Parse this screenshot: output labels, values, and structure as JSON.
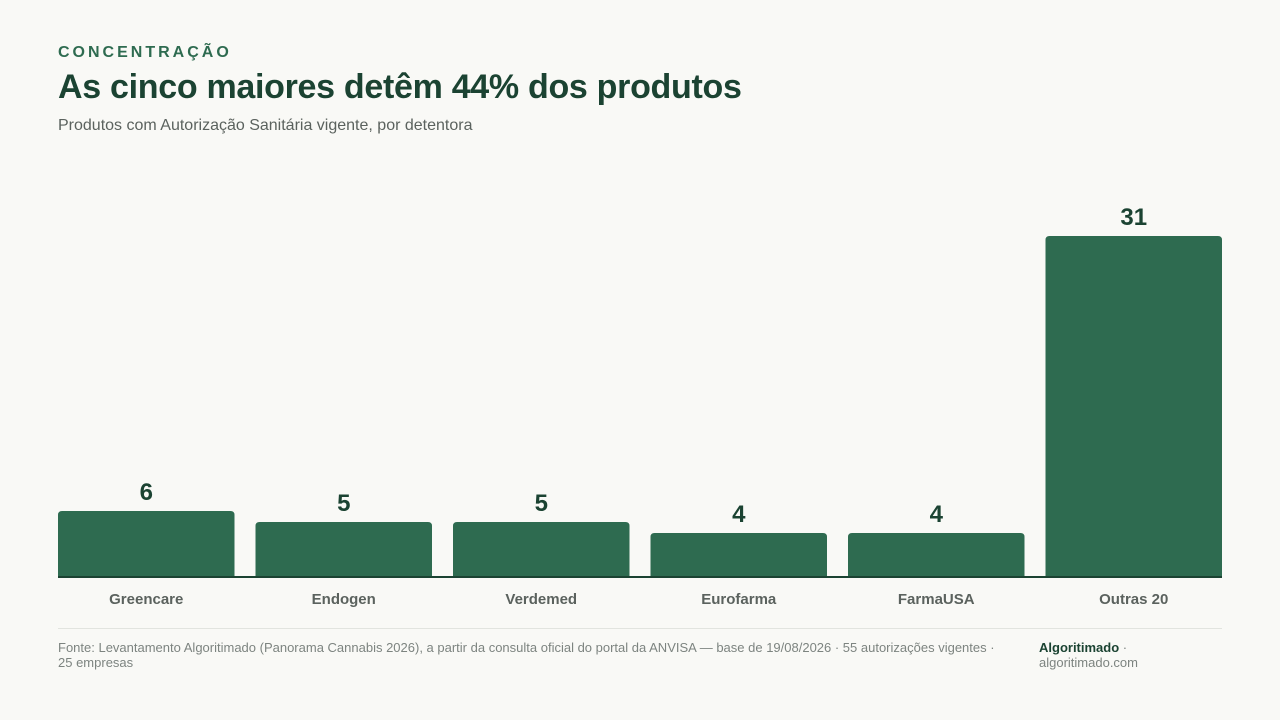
{
  "header": {
    "kicker": "CONCENTRAÇÃO",
    "title": "As cinco maiores detêm 44% dos produtos",
    "subtitle": "Produtos com Autorização Sanitária vigente, por detentora"
  },
  "chart_data": {
    "type": "bar",
    "categories": [
      "Greencare",
      "Endogen",
      "Verdemed",
      "Eurofarma",
      "FarmaUSA",
      "Outras 20"
    ],
    "values": [
      6,
      5,
      5,
      4,
      4,
      31
    ],
    "title": "As cinco maiores detêm 44% dos produtos",
    "subtitle": "Produtos com Autorização Sanitária vigente, por detentora",
    "xlabel": "",
    "ylabel": "",
    "ylim": [
      0,
      31
    ],
    "grid": false,
    "legend": "none",
    "data_labels": true,
    "bar_color": "#2e6b50"
  },
  "footer": {
    "source": "Fonte: Levantamento Algoritimado (Panorama Cannabis 2026), a partir da consulta oficial do portal da ANVISA — base de 19/08/2026 · 55 autorizações vigentes · 25 empresas",
    "brand_name": "Algoritimado",
    "brand_separator": " ·",
    "brand_url": "algoritimado.com"
  },
  "colors": {
    "background": "#f9f9f6",
    "bar": "#2e6b50",
    "title": "#1b4332",
    "muted": "#5b625e"
  }
}
